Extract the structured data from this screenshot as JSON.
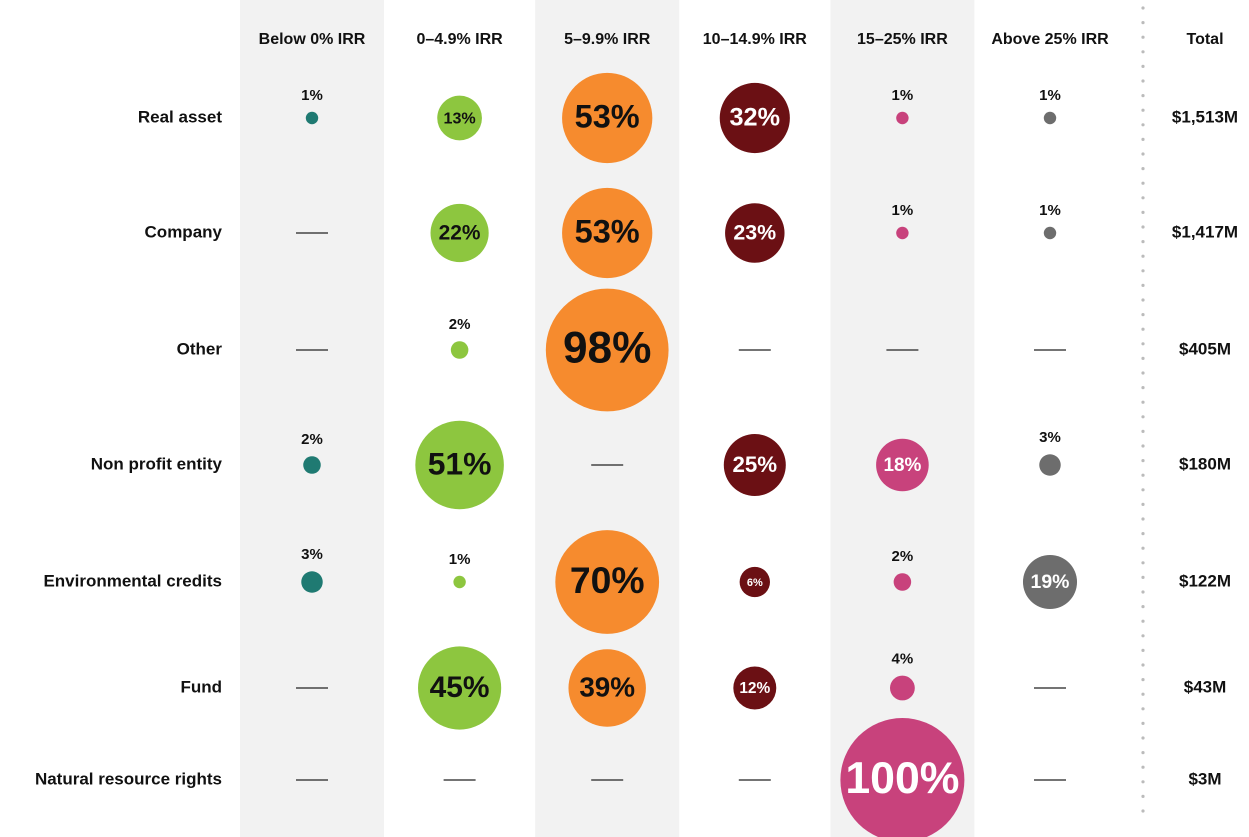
{
  "chart_data": {
    "type": "bubble-matrix",
    "rows": [
      "Real asset",
      "Company",
      "Other",
      "Non profit entity",
      "Environmental credits",
      "Fund",
      "Natural resource rights"
    ],
    "series": [
      {
        "name": "Below 0% IRR",
        "color": "#1f7a72",
        "text_color": "#ffffff",
        "shaded": true,
        "values": [
          1,
          null,
          null,
          2,
          3,
          null,
          null
        ],
        "value_labels": [
          "1%",
          null,
          null,
          "2%",
          "3%",
          null,
          null
        ]
      },
      {
        "name": "0–4.9% IRR",
        "color": "#8dc63f",
        "text_color": "#111111",
        "shaded": false,
        "values": [
          13,
          22,
          2,
          51,
          1,
          45,
          null
        ],
        "value_labels": [
          "13%",
          "22%",
          "2%",
          "51%",
          "1%",
          "45%",
          null
        ]
      },
      {
        "name": "5–9.9% IRR",
        "color": "#f68b2e",
        "text_color": "#111111",
        "shaded": true,
        "values": [
          53,
          53,
          98,
          null,
          70,
          39,
          null
        ],
        "value_labels": [
          "53%",
          "53%",
          "98%",
          null,
          "70%",
          "39%",
          null
        ]
      },
      {
        "name": "10–14.9% IRR",
        "color": "#6b1014",
        "text_color": "#ffffff",
        "shaded": false,
        "values": [
          32,
          23,
          null,
          25,
          6,
          12,
          null
        ],
        "value_labels": [
          "32%",
          "23%",
          null,
          "25%",
          "6%",
          "12%",
          null
        ]
      },
      {
        "name": "15–25% IRR",
        "color": "#c8427c",
        "text_color": "#ffffff",
        "shaded": true,
        "values": [
          1,
          1,
          null,
          18,
          2,
          4,
          100
        ],
        "value_labels": [
          "1%",
          "1%",
          null,
          "18%",
          "2%",
          "4%",
          "100%"
        ]
      },
      {
        "name": "Above 25% IRR",
        "color": "#6d6d6d",
        "text_color": "#ffffff",
        "shaded": false,
        "values": [
          1,
          1,
          null,
          3,
          19,
          null,
          null
        ],
        "value_labels": [
          "1%",
          "1%",
          null,
          "3%",
          "19%",
          null,
          null
        ]
      }
    ],
    "totals": {
      "name": "Total",
      "values": [
        1513,
        1417,
        405,
        180,
        122,
        43,
        3
      ],
      "value_labels": [
        "$1,513M",
        "$1,417M",
        "$405M",
        "$180M",
        "$122M",
        "$43M",
        "$3M"
      ]
    }
  }
}
